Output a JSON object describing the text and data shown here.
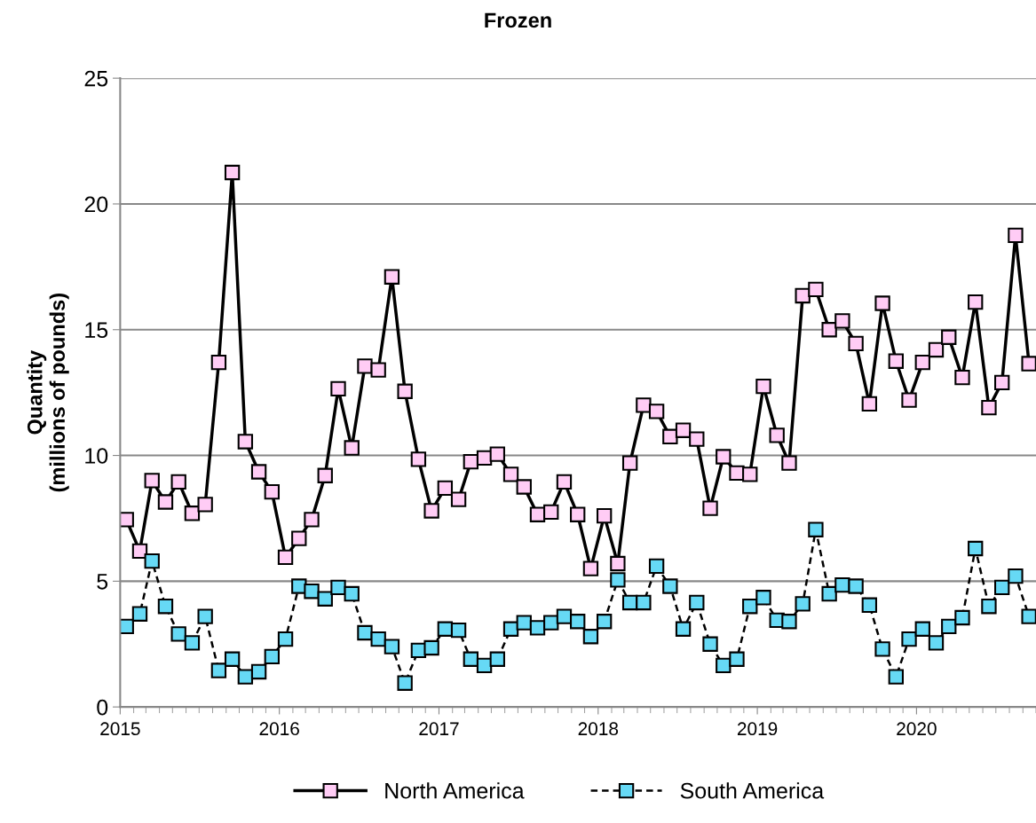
{
  "chart_data": {
    "type": "line",
    "title": "Frozen",
    "ylabel": "Quantity\n(millions of pounds)",
    "x": [
      "2015-01-15",
      "2015-02-15",
      "2015-03-15",
      "2015-04-15",
      "2015-05-15",
      "2015-06-15",
      "2015-07-15",
      "2015-08-15",
      "2015-09-15",
      "2015-10-15",
      "2015-11-15",
      "2015-12-15",
      "2016-01-15",
      "2016-02-15",
      "2016-03-15",
      "2016-04-15",
      "2016-05-15",
      "2016-06-15",
      "2016-07-15",
      "2016-08-15",
      "2016-09-15",
      "2016-10-15",
      "2016-11-15",
      "2016-12-15",
      "2017-01-15",
      "2017-02-15",
      "2017-03-15",
      "2017-04-15",
      "2017-05-15",
      "2017-06-15",
      "2017-07-15",
      "2017-08-15",
      "2017-09-15",
      "2017-10-15",
      "2017-11-15",
      "2017-12-15",
      "2018-01-15",
      "2018-02-15",
      "2018-03-15",
      "2018-04-15",
      "2018-05-15",
      "2018-06-15",
      "2018-07-15",
      "2018-08-15",
      "2018-09-15",
      "2018-10-15",
      "2018-11-15",
      "2018-12-15",
      "2019-01-15",
      "2019-02-15",
      "2019-03-15",
      "2019-04-15",
      "2019-05-15",
      "2019-06-15",
      "2019-07-15",
      "2019-08-15",
      "2019-09-15",
      "2019-10-15",
      "2019-11-15",
      "2019-12-15",
      "2020-01-15",
      "2020-02-15",
      "2020-03-15",
      "2020-04-15",
      "2020-05-15",
      "2020-06-15",
      "2020-07-15",
      "2020-08-15",
      "2020-09-15"
    ],
    "series": [
      {
        "name": "North America",
        "color": "#ffccf5",
        "line_style": "solid",
        "values": [
          7.45,
          6.2,
          9.0,
          8.15,
          8.95,
          7.7,
          8.05,
          13.7,
          21.25,
          10.55,
          9.35,
          8.55,
          5.95,
          6.7,
          7.45,
          9.2,
          12.65,
          10.3,
          13.55,
          13.4,
          17.1,
          12.55,
          9.85,
          7.8,
          8.7,
          8.25,
          9.75,
          9.9,
          10.05,
          9.25,
          8.75,
          7.65,
          7.75,
          8.95,
          7.65,
          5.5,
          7.6,
          5.7,
          9.7,
          12.0,
          11.75,
          10.75,
          11.0,
          10.65,
          7.9,
          9.95,
          9.3,
          9.25,
          12.75,
          10.8,
          9.7,
          16.35,
          16.6,
          15.0,
          15.35,
          14.45,
          12.05,
          16.05,
          13.75,
          12.2,
          13.7,
          14.2,
          14.7,
          13.1,
          16.1,
          11.9,
          12.9,
          18.75,
          13.65
        ]
      },
      {
        "name": "South America",
        "color": "#66d9f5",
        "line_style": "dashed",
        "values": [
          3.2,
          3.7,
          5.8,
          4.0,
          2.9,
          2.55,
          3.6,
          1.45,
          1.9,
          1.2,
          1.4,
          2.0,
          2.7,
          4.8,
          4.6,
          4.3,
          4.75,
          4.5,
          2.95,
          2.7,
          2.4,
          0.95,
          2.25,
          2.35,
          3.1,
          3.05,
          1.9,
          1.65,
          1.9,
          3.1,
          3.35,
          3.15,
          3.35,
          3.6,
          3.4,
          2.8,
          3.4,
          5.05,
          4.15,
          4.15,
          5.6,
          4.8,
          3.1,
          4.15,
          2.5,
          1.65,
          1.9,
          4.0,
          4.35,
          3.45,
          3.4,
          4.1,
          7.05,
          4.5,
          4.85,
          4.8,
          4.05,
          2.3,
          1.2,
          2.7,
          3.1,
          2.55,
          3.2,
          3.55,
          6.3,
          4.0,
          4.75,
          5.2,
          3.6
        ]
      }
    ],
    "xlim": [
      "2015-01-01",
      "2020-10-01"
    ],
    "xticks": [
      {
        "value": "2015-01-01",
        "label": "2015"
      },
      {
        "value": "2016-01-01",
        "label": "2016"
      },
      {
        "value": "2017-01-01",
        "label": "2017"
      },
      {
        "value": "2018-01-01",
        "label": "2018"
      },
      {
        "value": "2019-01-01",
        "label": "2019"
      },
      {
        "value": "2020-01-01",
        "label": "2020"
      }
    ],
    "ylim": [
      0,
      25
    ],
    "yticks": [
      0,
      5,
      10,
      15,
      20,
      25
    ],
    "grid": "y",
    "legend": "bottom",
    "marker": "square"
  }
}
